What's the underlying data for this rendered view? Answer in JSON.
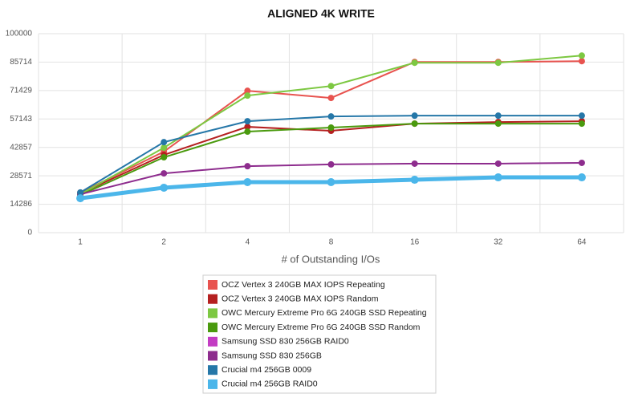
{
  "chart_data": {
    "type": "line",
    "title": "ALIGNED 4K WRITE",
    "x_label": "# of Outstanding I/Os",
    "categories": [
      "1",
      "2",
      "4",
      "8",
      "16",
      "32",
      "64"
    ],
    "ylim": [
      0,
      100000
    ],
    "yticks": [
      0,
      14286,
      28571,
      42857,
      57143,
      71429,
      85714,
      100000
    ],
    "grid": true,
    "legend": "bottom",
    "series": [
      {
        "name": "OCZ Vertex 3 240GB MAX IOPS Repeating",
        "color": "#e8534f",
        "values": [
          20150,
          40700,
          71300,
          67700,
          85800,
          85800,
          86200
        ]
      },
      {
        "name": "OCZ Vertex 3 240GB MAX IOPS Random",
        "color": "#b52020",
        "values": [
          19700,
          39100,
          53200,
          51200,
          54800,
          55600,
          56000
        ]
      },
      {
        "name": "OWC Mercury Extreme Pro 6G 240GB SSD Repeating",
        "color": "#7dc842",
        "values": [
          19300,
          42700,
          68900,
          73700,
          85400,
          85400,
          89000
        ]
      },
      {
        "name": "OWC Mercury Extreme Pro 6G 240GB SSD Random",
        "color": "#4a9a0e",
        "values": [
          18900,
          37900,
          50800,
          52800,
          54800,
          54800,
          54800
        ]
      },
      {
        "name": "Samsung SSD 830 256GB RAID0",
        "color": "#c33cc3",
        "values": [
          null,
          null,
          null,
          null,
          null,
          null,
          null
        ]
      },
      {
        "name": "Samsung SSD 830 256GB",
        "color": "#8e2d8e",
        "values": [
          19300,
          29800,
          33400,
          34300,
          34700,
          34700,
          35100
        ]
      },
      {
        "name": "Crucial m4 256GB 0009",
        "color": "#2577a8",
        "values": [
          20200,
          45500,
          56000,
          58400,
          58800,
          58800,
          58800
        ]
      },
      {
        "name": "Crucial m4 256GB RAID0",
        "color": "#4bb6ea",
        "values": [
          17300,
          22600,
          25400,
          25400,
          26600,
          27800,
          27800
        ],
        "width": 5
      }
    ]
  }
}
